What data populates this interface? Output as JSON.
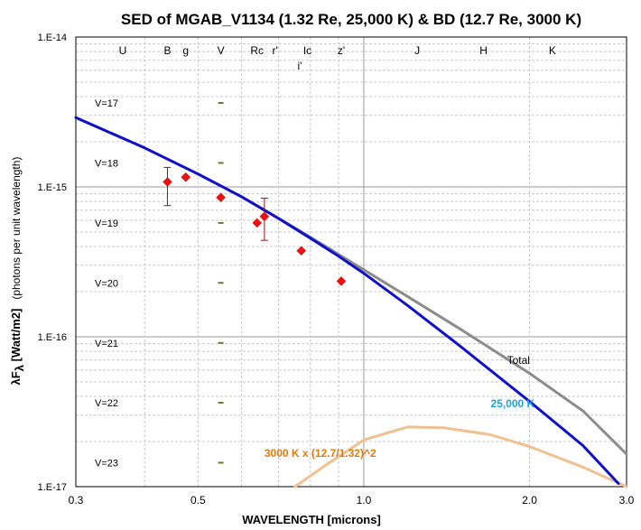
{
  "chart_data": {
    "type": "line",
    "title": "SED of MGAB_V1134 (1.32 Re, 25,000 K) & BD (12.7 Re, 3000 K)",
    "xlabel": "WAVELENGTH [microns]",
    "ylabel_main": "λF",
    "ylabel_sub": "λ",
    "ylabel_rest": " [Watt/m2]",
    "ylabel_units": "(photons per unit wavelength)",
    "x_scale": "log",
    "y_scale": "log",
    "xlim": [
      0.3,
      3.0
    ],
    "ylim": [
      1e-17,
      1e-14
    ],
    "x_ticks": [
      {
        "value": 0.3,
        "label": "0.3"
      },
      {
        "value": 0.5,
        "label": "0.5"
      },
      {
        "value": 1.0,
        "label": "1.0"
      },
      {
        "value": 2.0,
        "label": "2.0"
      },
      {
        "value": 3.0,
        "label": "3.0"
      }
    ],
    "y_ticks": [
      {
        "value": 1e-14,
        "label": "1.E-14"
      },
      {
        "value": 1e-15,
        "label": "1.E-15"
      },
      {
        "value": 1e-16,
        "label": "1.E-16"
      },
      {
        "value": 1e-17,
        "label": "1.E-17"
      }
    ],
    "grid": true,
    "bands": [
      {
        "label": "U",
        "x": 0.365,
        "row": 0
      },
      {
        "label": "B",
        "x": 0.44,
        "row": 0
      },
      {
        "label": "g",
        "x": 0.475,
        "row": 0
      },
      {
        "label": "V",
        "x": 0.55,
        "row": 0
      },
      {
        "label": "Rc",
        "x": 0.64,
        "row": 0
      },
      {
        "label": "r'",
        "x": 0.69,
        "row": 0
      },
      {
        "label": "Ic",
        "x": 0.79,
        "row": 0
      },
      {
        "label": "i'",
        "x": 0.765,
        "row": 1
      },
      {
        "label": "z'",
        "x": 0.91,
        "row": 0
      },
      {
        "label": "J",
        "x": 1.25,
        "row": 0
      },
      {
        "label": "H",
        "x": 1.65,
        "row": 0
      },
      {
        "label": "K",
        "x": 2.2,
        "row": 0
      }
    ],
    "v_magnitudes": [
      {
        "label": "V=17",
        "y": 3.63e-15
      },
      {
        "label": "V=18",
        "y": 1.445e-15
      },
      {
        "label": "V=19",
        "y": 5.75e-16
      },
      {
        "label": "V=20",
        "y": 2.29e-16
      },
      {
        "label": "V=21",
        "y": 9.1e-17
      },
      {
        "label": "V=22",
        "y": 3.63e-17
      },
      {
        "label": "V=23",
        "y": 1.445e-17
      }
    ],
    "series": [
      {
        "name": "Total",
        "color": "#8c8c8c",
        "x": [
          0.3,
          0.4,
          0.5,
          0.6,
          0.7,
          0.8,
          0.9,
          1.0,
          1.2,
          1.5,
          2.0,
          2.5,
          3.0
        ],
        "y": [
          2.9e-15,
          1.82e-15,
          1.22e-15,
          8.6e-16,
          6.2e-16,
          4.62e-16,
          3.55e-16,
          2.8e-16,
          1.86e-16,
          1.12e-16,
          5.7e-17,
          3.2e-17,
          1.65e-17
        ]
      },
      {
        "name": "25,000 K",
        "color": "#1010c8",
        "x": [
          0.3,
          0.4,
          0.5,
          0.6,
          0.7,
          0.8,
          0.9,
          1.0,
          1.2,
          1.5,
          2.0,
          2.5,
          2.9
        ],
        "y": [
          2.9e-15,
          1.82e-15,
          1.22e-15,
          8.6e-16,
          6.15e-16,
          4.55e-16,
          3.45e-16,
          2.65e-16,
          1.62e-16,
          8.6e-17,
          3.7e-17,
          1.88e-17,
          1.05e-17
        ]
      },
      {
        "name": "3000 K x (12.7/1.32)^2",
        "color": "#f0c090",
        "x": [
          0.75,
          0.85,
          1.0,
          1.2,
          1.4,
          1.7,
          2.0,
          2.5,
          3.0
        ],
        "y": [
          1e-17,
          1.38e-17,
          2.05e-17,
          2.5e-17,
          2.47e-17,
          2.22e-17,
          1.85e-17,
          1.35e-17,
          1e-17
        ]
      }
    ],
    "observations": [
      {
        "band": "B",
        "x": 0.44,
        "y": 1.08e-15,
        "err_low": 7.5e-16,
        "err_high": 1.35e-15
      },
      {
        "band": "g",
        "x": 0.475,
        "y": 1.16e-15
      },
      {
        "band": "V",
        "x": 0.55,
        "y": 8.5e-16
      },
      {
        "band": "Rc",
        "x": 0.64,
        "y": 5.75e-16
      },
      {
        "band": "r'",
        "x": 0.66,
        "y": 6.35e-16,
        "err_low": 4.4e-16,
        "err_high": 8.4e-16
      },
      {
        "band": "i'",
        "x": 0.77,
        "y": 3.75e-16
      },
      {
        "band": "z'",
        "x": 0.91,
        "y": 2.35e-16
      }
    ],
    "annotations": [
      {
        "text": "Total",
        "x": 1.82,
        "y": 6.6e-17,
        "color": "#000000"
      },
      {
        "text": "25,000 K",
        "x": 1.7,
        "y": 3.4e-17,
        "color": "#1aa3d6"
      },
      {
        "text": "3000 K x (12.7/1.32)^2",
        "x": 0.66,
        "y": 1.58e-17,
        "color": "#e07a10"
      }
    ]
  }
}
